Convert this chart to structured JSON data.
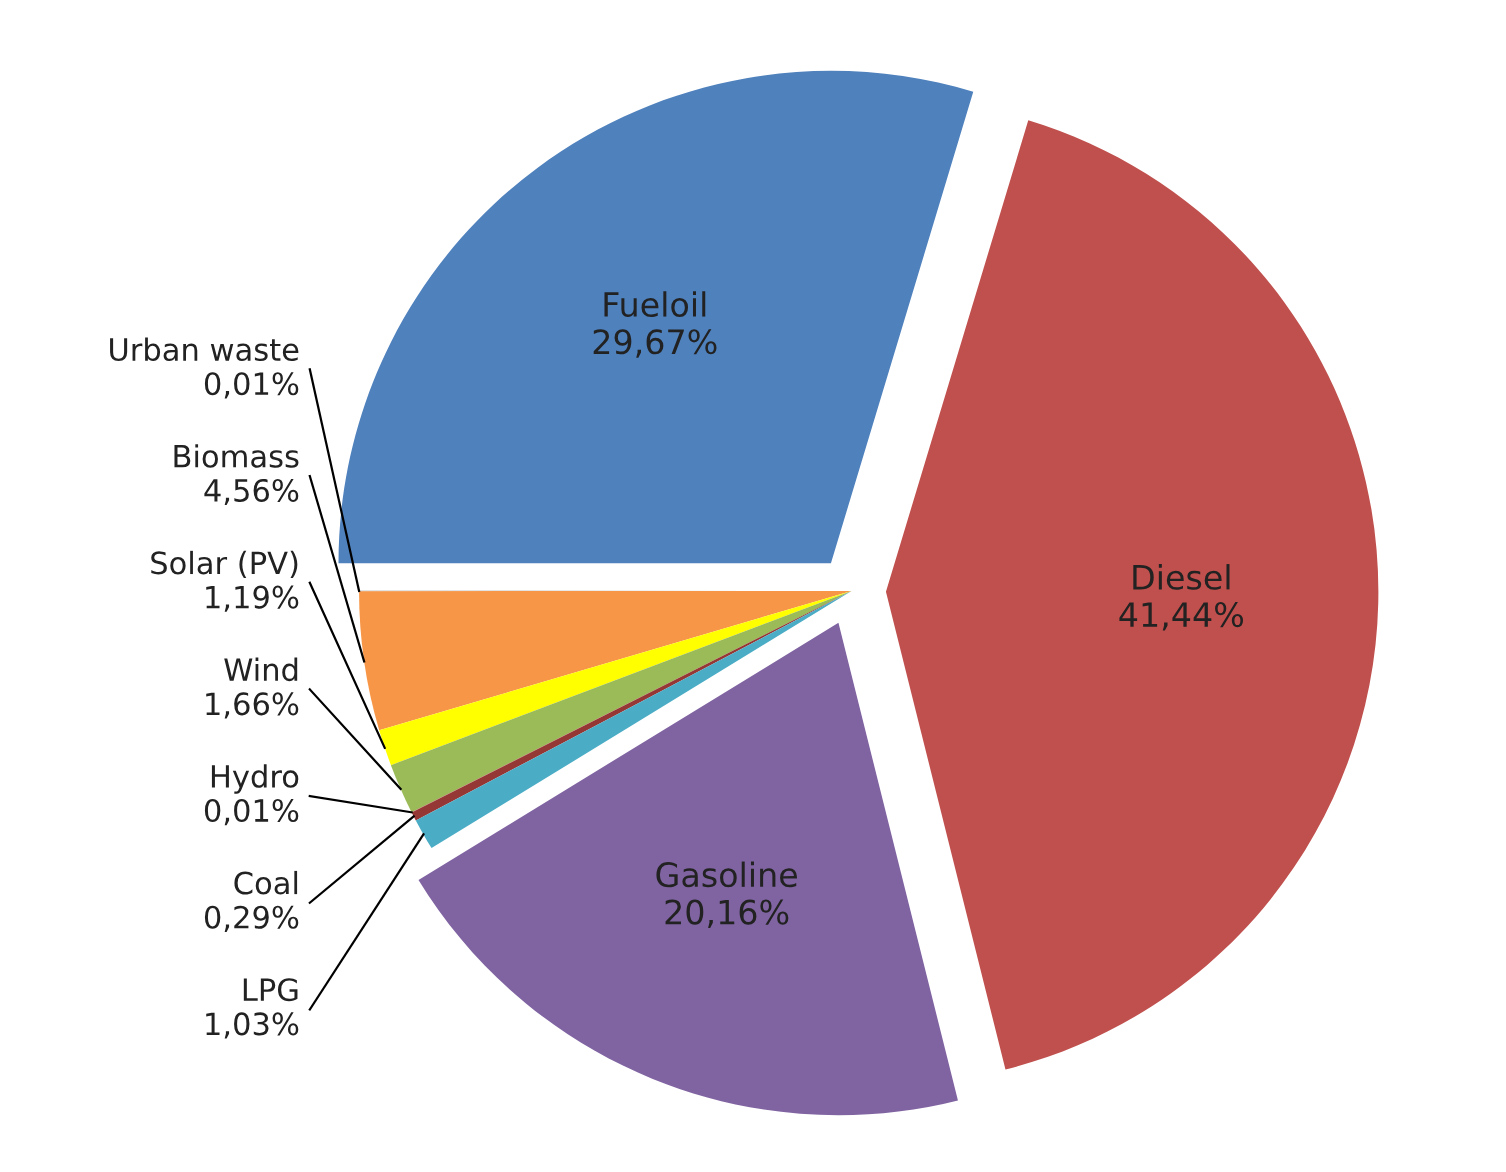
{
  "chart_data": {
    "type": "pie",
    "categories": [
      "Fueloil",
      "Urban waste",
      "Biomass",
      "Solar (PV)",
      "Wind",
      "Hydro",
      "Coal",
      "LPG",
      "Gasoline",
      "Diesel"
    ],
    "values": [
      29.67,
      0.01,
      4.56,
      1.19,
      1.66,
      0.01,
      0.29,
      1.03,
      20.16,
      41.44
    ],
    "value_labels": [
      "29,67%",
      "0,01%",
      "4,56%",
      "1,19%",
      "1,66%",
      "0,01%",
      "0,29%",
      "1,03%",
      "20,16%",
      "41,44%"
    ],
    "colors": [
      "#4f81bd",
      "#8a8a8a",
      "#f79646",
      "#ffff00",
      "#9bbb59",
      "#c0504d",
      "#953735",
      "#4bacc6",
      "#8064a2",
      "#c0504d"
    ],
    "legend": false
  }
}
